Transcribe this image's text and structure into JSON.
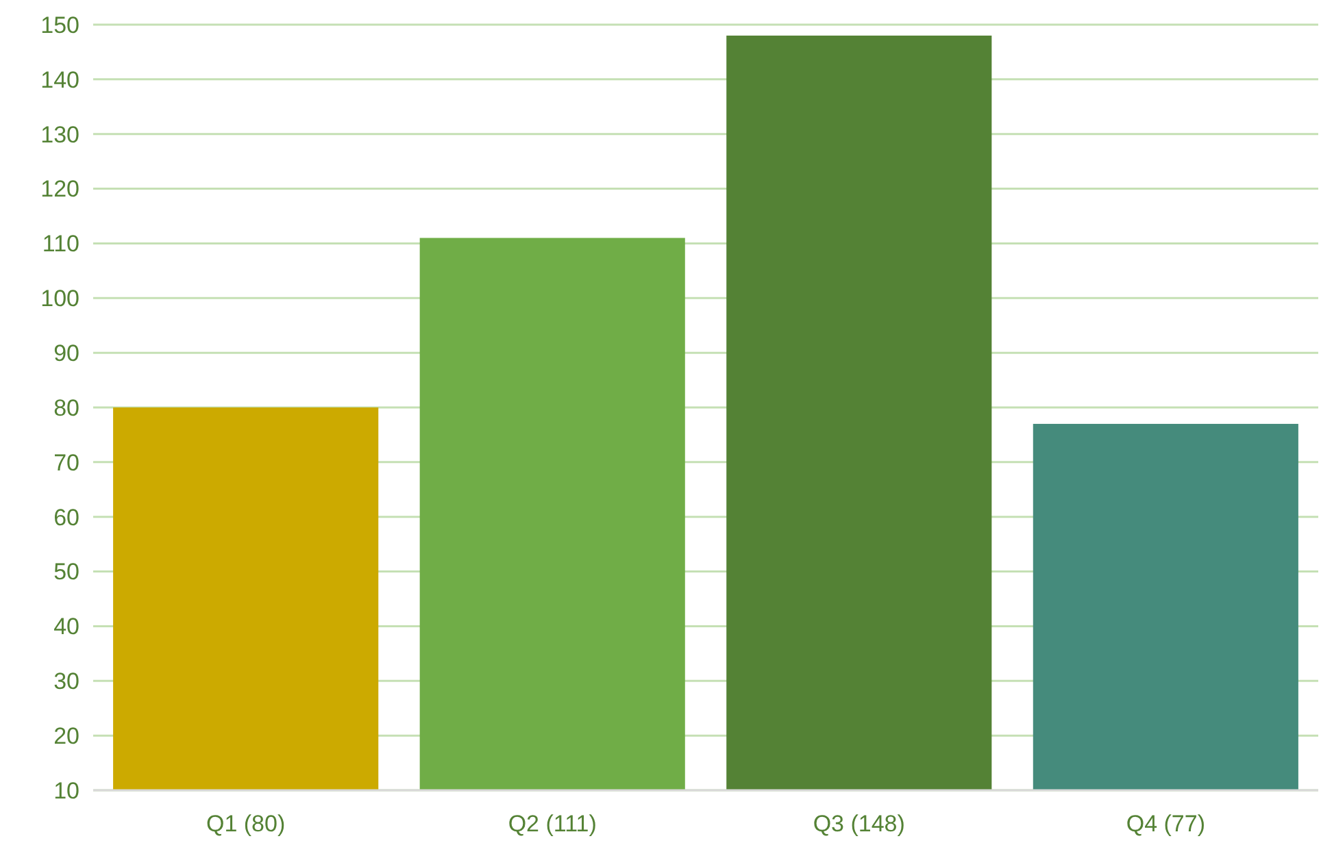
{
  "chart_data": {
    "type": "bar",
    "categories": [
      "Q1 (80)",
      "Q2 (111)",
      "Q3 (148)",
      "Q4 (77)"
    ],
    "values": [
      80,
      111,
      148,
      77
    ],
    "colors": [
      "#ccaa00",
      "#70ad47",
      "#548235",
      "#458b7c"
    ],
    "ylim": [
      10,
      150
    ],
    "yticks": [
      10,
      20,
      30,
      40,
      50,
      60,
      70,
      80,
      90,
      100,
      110,
      120,
      130,
      140,
      150
    ],
    "grid": "y"
  }
}
